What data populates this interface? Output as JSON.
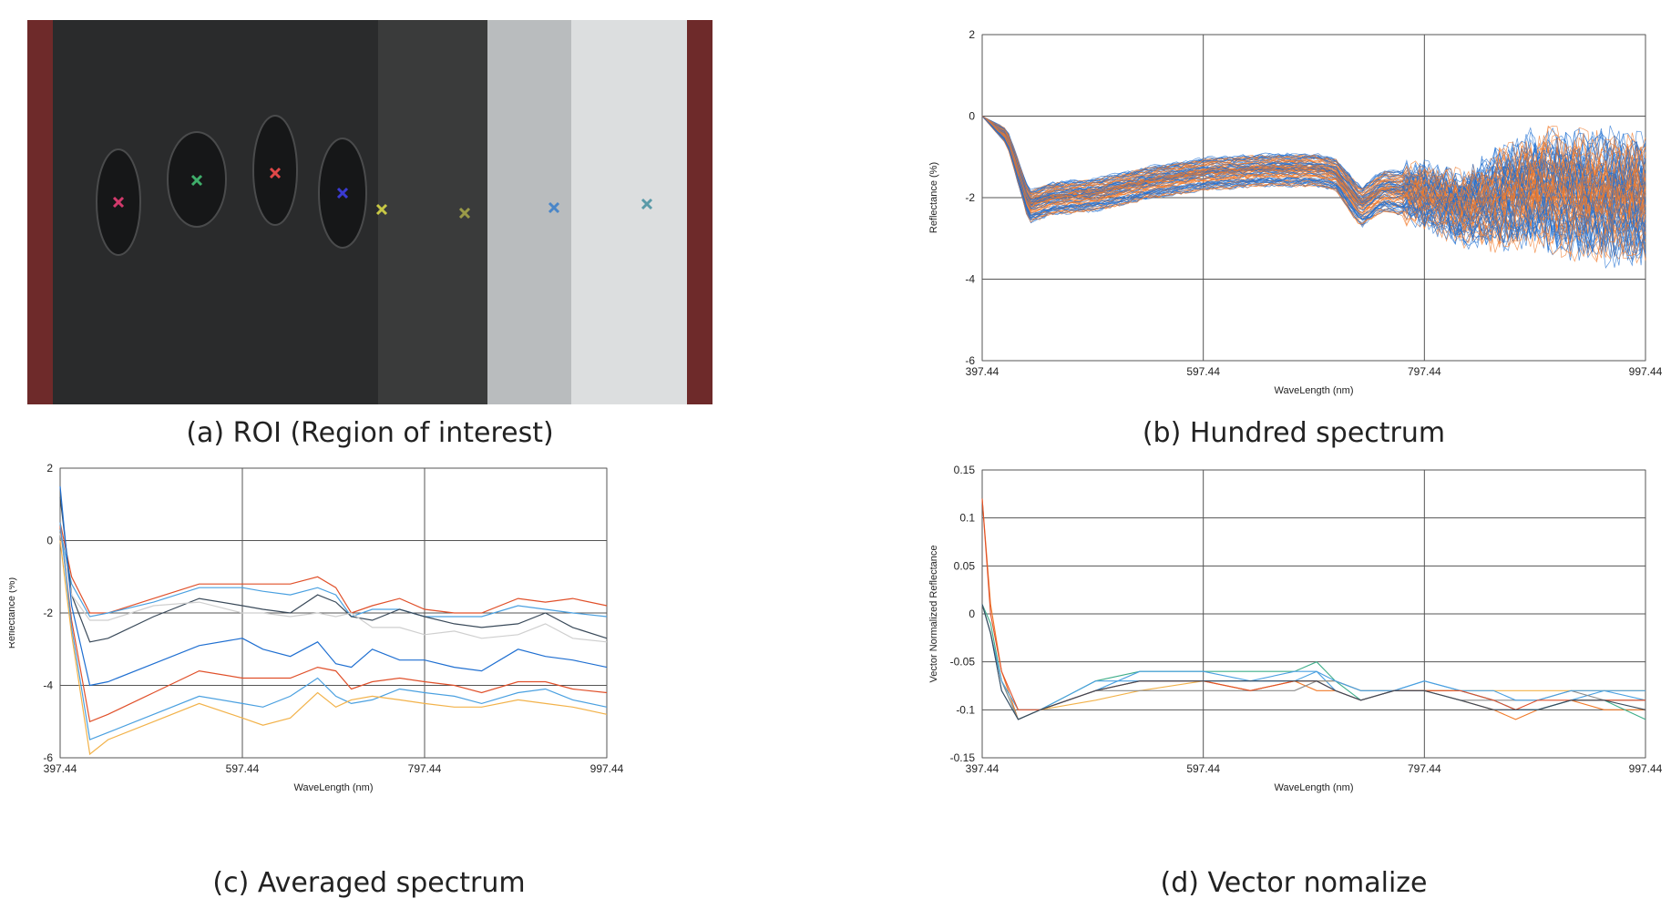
{
  "captions": {
    "a": "(a) ROI (Region of interest)",
    "b": "(b) Hundred spectrum",
    "c": "(c) Averaged spectrum",
    "d": "(d) Vector nomalize"
  },
  "roi_markers": [
    "#d23a6c",
    "#3fae6a",
    "#e04848",
    "#3a3ad2",
    "#c8c845",
    "#9a9a48",
    "#4a86c8",
    "#5a9aa8"
  ],
  "colors": [
    "#1f6fd1",
    "#f07a2a",
    "#3a4a5a",
    "#f2b24a",
    "#cfcfcf",
    "#4aa0e0",
    "#e0502a",
    "#8a8a8a"
  ],
  "chart_data": [
    {
      "id": "b",
      "type": "line",
      "xlabel": "WaveLength (nm)",
      "ylabel": "Reflectance (%)",
      "xlim": [
        397.44,
        997.44
      ],
      "ylim": [
        -6,
        2
      ],
      "xticks": [
        "397.44",
        "597.44",
        "797.44",
        "997.44"
      ],
      "yticks": [
        "2",
        "0",
        "-2",
        "-4",
        "-6"
      ],
      "series_count": 100,
      "x": [
        397.44,
        420,
        440,
        460,
        500,
        550,
        597.44,
        650,
        700,
        717,
        740,
        760,
        797.44,
        830,
        860,
        900,
        950,
        997.44
      ],
      "center": [
        0,
        -0.5,
        -2.2,
        -2.0,
        -1.9,
        -1.6,
        -1.4,
        -1.3,
        -1.3,
        -1.4,
        -2.2,
        -1.8,
        -1.9,
        -2.2,
        -2.0,
        -1.7,
        -1.9,
        -2.0
      ],
      "spread": [
        0,
        0.2,
        0.4,
        0.4,
        0.4,
        0.4,
        0.4,
        0.4,
        0.4,
        0.4,
        0.5,
        0.5,
        0.6,
        0.7,
        0.9,
        1.1,
        1.2,
        1.2
      ]
    },
    {
      "id": "c",
      "type": "line",
      "xlabel": "WaveLength (nm)",
      "ylabel": "Reflectance (%)",
      "xlim": [
        397.44,
        997.44
      ],
      "ylim": [
        -6,
        2
      ],
      "xticks": [
        "397.44",
        "597.44",
        "797.44",
        "997.44"
      ],
      "yticks": [
        "2",
        "0",
        "-2",
        "-4",
        "-6"
      ],
      "x": [
        397.44,
        410,
        430,
        450,
        500,
        550,
        597.44,
        620,
        650,
        680,
        700,
        717,
        740,
        770,
        797.44,
        830,
        860,
        900,
        930,
        960,
        997.44
      ],
      "series": [
        {
          "values": [
            0.5,
            -1.0,
            -2.0,
            -2.0,
            -1.6,
            -1.2,
            -1.2,
            -1.2,
            -1.2,
            -1.0,
            -1.3,
            -2.0,
            -1.8,
            -1.6,
            -1.9,
            -2.0,
            -2.0,
            -1.6,
            -1.7,
            -1.6,
            -1.8
          ]
        },
        {
          "values": [
            0.3,
            -1.2,
            -2.1,
            -2.0,
            -1.7,
            -1.3,
            -1.3,
            -1.4,
            -1.5,
            -1.3,
            -1.5,
            -2.1,
            -1.9,
            -1.9,
            -2.1,
            -2.1,
            -2.1,
            -1.8,
            -1.9,
            -2.0,
            -2.1
          ]
        },
        {
          "values": [
            1.2,
            -1.5,
            -2.8,
            -2.7,
            -2.1,
            -1.6,
            -1.8,
            -1.9,
            -2.0,
            -1.5,
            -1.7,
            -2.1,
            -2.2,
            -1.9,
            -2.1,
            -2.3,
            -2.4,
            -2.3,
            -2.0,
            -2.4,
            -2.7
          ]
        },
        {
          "values": [
            0.2,
            -1.5,
            -2.2,
            -2.2,
            -1.8,
            -1.7,
            -2.0,
            -2.0,
            -2.1,
            -2.0,
            -2.1,
            -2.0,
            -2.4,
            -2.4,
            -2.6,
            -2.5,
            -2.7,
            -2.6,
            -2.3,
            -2.7,
            -2.8
          ]
        },
        {
          "values": [
            1.5,
            -1.8,
            -4.0,
            -3.9,
            -3.4,
            -2.9,
            -2.7,
            -3.0,
            -3.2,
            -2.8,
            -3.4,
            -3.5,
            -3.0,
            -3.3,
            -3.3,
            -3.5,
            -3.6,
            -3.0,
            -3.2,
            -3.3,
            -3.5
          ]
        },
        {
          "values": [
            0.4,
            -2.2,
            -5.0,
            -4.8,
            -4.2,
            -3.6,
            -3.8,
            -3.8,
            -3.8,
            -3.5,
            -3.6,
            -4.1,
            -3.9,
            -3.8,
            -3.9,
            -4.0,
            -4.2,
            -3.9,
            -3.9,
            -4.1,
            -4.2
          ]
        },
        {
          "values": [
            0.5,
            -2.4,
            -5.5,
            -5.3,
            -4.8,
            -4.3,
            -4.5,
            -4.6,
            -4.3,
            -3.8,
            -4.3,
            -4.5,
            -4.4,
            -4.1,
            -4.2,
            -4.3,
            -4.5,
            -4.2,
            -4.1,
            -4.4,
            -4.6
          ]
        },
        {
          "values": [
            0.0,
            -2.6,
            -5.9,
            -5.5,
            -5.0,
            -4.5,
            -4.9,
            -5.1,
            -4.9,
            -4.2,
            -4.6,
            -4.4,
            -4.3,
            -4.4,
            -4.5,
            -4.6,
            -4.6,
            -4.4,
            -4.5,
            -4.6,
            -4.8
          ]
        }
      ]
    },
    {
      "id": "d",
      "type": "line",
      "xlabel": "WaveLength (nm)",
      "ylabel": "Vector Normalized Reflectance",
      "xlim": [
        397.44,
        997.44
      ],
      "ylim": [
        -0.15,
        0.15
      ],
      "xticks": [
        "397.44",
        "597.44",
        "797.44",
        "997.44"
      ],
      "yticks": [
        "0.15",
        "0.1",
        "0.05",
        "0",
        "-0.05",
        "-0.1",
        "-0.15"
      ],
      "x": [
        397.44,
        405,
        415,
        430,
        450,
        500,
        540,
        597.44,
        640,
        680,
        700,
        717,
        740,
        770,
        797.44,
        830,
        860,
        880,
        900,
        930,
        960,
        997.44
      ],
      "series": [
        {
          "values": [
            0.12,
            0.01,
            -0.06,
            -0.11,
            -0.1,
            -0.08,
            -0.07,
            -0.07,
            -0.08,
            -0.07,
            -0.08,
            -0.08,
            -0.09,
            -0.08,
            -0.08,
            -0.09,
            -0.1,
            -0.11,
            -0.1,
            -0.09,
            -0.1,
            -0.1
          ]
        },
        {
          "values": [
            0.01,
            -0.01,
            -0.07,
            -0.11,
            -0.1,
            -0.07,
            -0.06,
            -0.06,
            -0.06,
            -0.06,
            -0.05,
            -0.07,
            -0.09,
            -0.08,
            -0.08,
            -0.08,
            -0.09,
            -0.1,
            -0.1,
            -0.09,
            -0.09,
            -0.11
          ]
        },
        {
          "values": [
            0.01,
            -0.02,
            -0.08,
            -0.11,
            -0.1,
            -0.08,
            -0.06,
            -0.06,
            -0.07,
            -0.06,
            -0.06,
            -0.08,
            -0.09,
            -0.08,
            -0.07,
            -0.08,
            -0.09,
            -0.1,
            -0.1,
            -0.09,
            -0.08,
            -0.09
          ]
        },
        {
          "values": [
            0.01,
            -0.02,
            -0.07,
            -0.1,
            -0.1,
            -0.09,
            -0.08,
            -0.07,
            -0.08,
            -0.07,
            -0.07,
            -0.07,
            -0.08,
            -0.08,
            -0.08,
            -0.08,
            -0.08,
            -0.08,
            -0.08,
            -0.08,
            -0.08,
            -0.08
          ]
        },
        {
          "values": [
            0.01,
            -0.02,
            -0.07,
            -0.11,
            -0.1,
            -0.08,
            -0.08,
            -0.08,
            -0.08,
            -0.08,
            -0.07,
            -0.07,
            -0.08,
            -0.08,
            -0.08,
            -0.09,
            -0.09,
            -0.09,
            -0.09,
            -0.08,
            -0.09,
            -0.09
          ]
        },
        {
          "values": [
            0.01,
            -0.02,
            -0.07,
            -0.1,
            -0.1,
            -0.07,
            -0.07,
            -0.07,
            -0.07,
            -0.07,
            -0.06,
            -0.07,
            -0.08,
            -0.08,
            -0.07,
            -0.08,
            -0.08,
            -0.09,
            -0.09,
            -0.08,
            -0.08,
            -0.08
          ]
        },
        {
          "values": [
            0.12,
            0.0,
            -0.06,
            -0.1,
            -0.1,
            -0.08,
            -0.07,
            -0.07,
            -0.08,
            -0.07,
            -0.07,
            -0.08,
            -0.09,
            -0.08,
            -0.08,
            -0.08,
            -0.09,
            -0.1,
            -0.09,
            -0.09,
            -0.09,
            -0.09
          ]
        },
        {
          "values": [
            0.01,
            -0.02,
            -0.08,
            -0.11,
            -0.1,
            -0.08,
            -0.07,
            -0.07,
            -0.07,
            -0.07,
            -0.07,
            -0.08,
            -0.09,
            -0.08,
            -0.08,
            -0.09,
            -0.1,
            -0.1,
            -0.1,
            -0.09,
            -0.09,
            -0.1
          ]
        }
      ]
    }
  ]
}
